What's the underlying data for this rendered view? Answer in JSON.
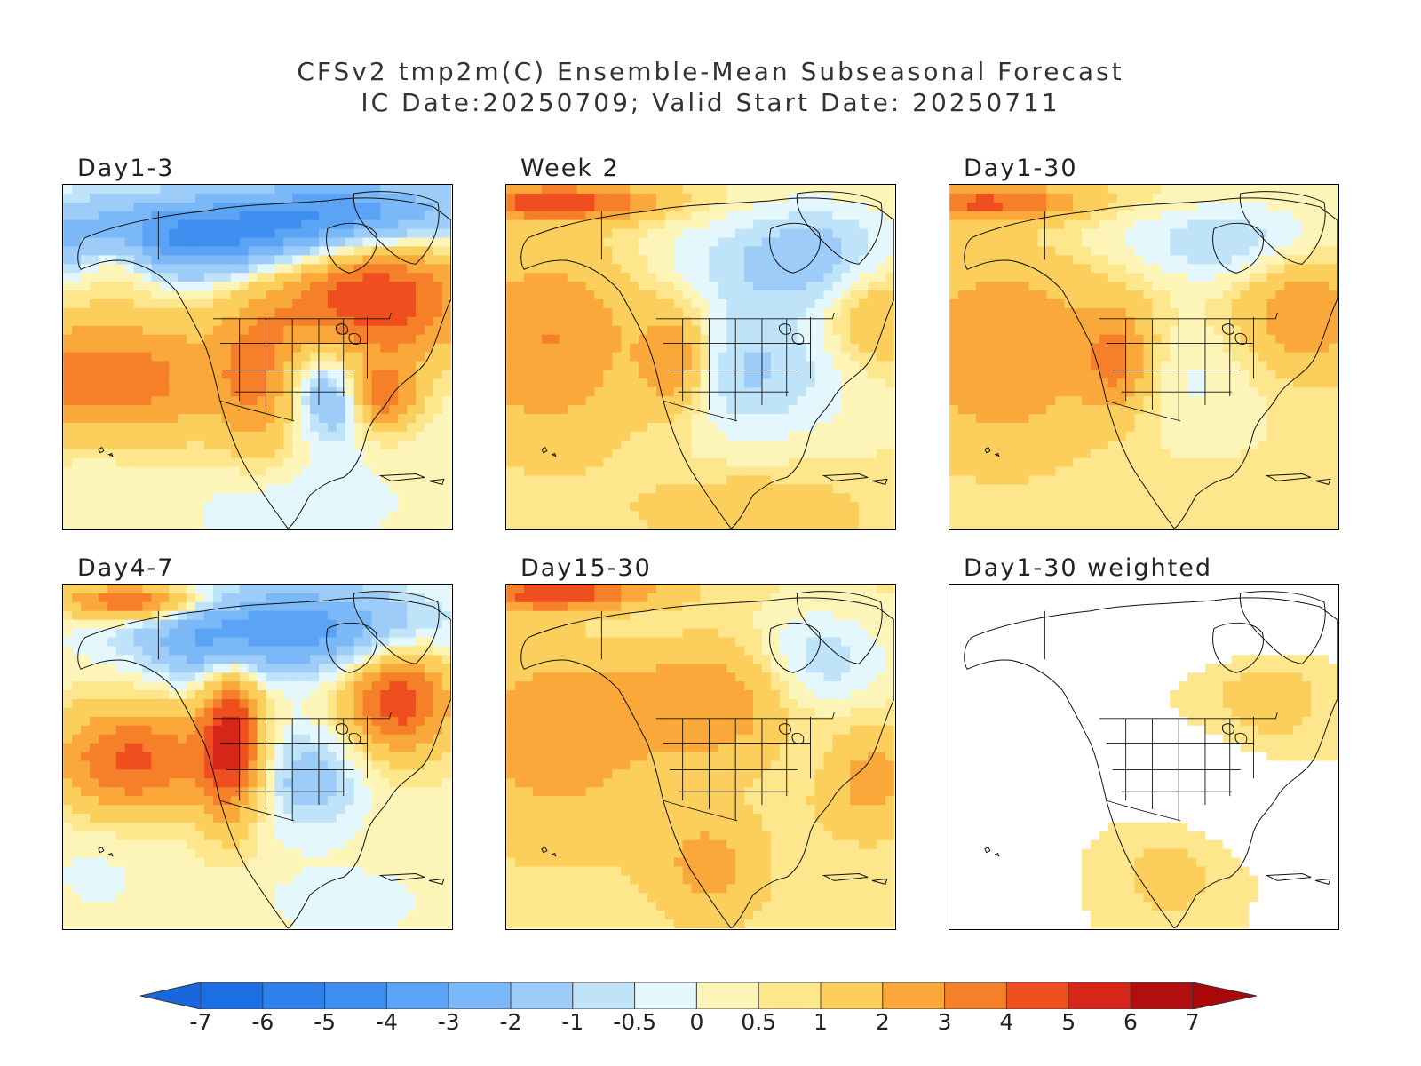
{
  "title_line1": "CFSv2 tmp2m(C) Ensemble-Mean Subseasonal Forecast",
  "title_line2": "IC Date:20250709; Valid Start Date: 20250711",
  "panels": [
    {
      "label": "Day1-3",
      "col": 0,
      "row": 0,
      "style": "d13"
    },
    {
      "label": "Week 2",
      "col": 1,
      "row": 0,
      "style": "w2"
    },
    {
      "label": "Day1-30",
      "col": 2,
      "row": 0,
      "style": "d130"
    },
    {
      "label": "Day4-7",
      "col": 0,
      "row": 1,
      "style": "d47"
    },
    {
      "label": "Day15-30",
      "col": 1,
      "row": 1,
      "style": "d1530"
    },
    {
      "label": "Day1-30 weighted",
      "col": 2,
      "row": 1,
      "style": "wtd"
    }
  ],
  "colorbar": {
    "ticks": [
      "-7",
      "-6",
      "-5",
      "-4",
      "-3",
      "-2",
      "-1",
      "-0.5",
      "0",
      "0.5",
      "1",
      "2",
      "3",
      "4",
      "5",
      "6",
      "7"
    ],
    "colors": [
      "#1d6ee3",
      "#2f80ea",
      "#3f8ff0",
      "#5aa3f5",
      "#7ab8f8",
      "#9dccf9",
      "#bfe3f8",
      "#e3f7fd",
      "#fdf5b8",
      "#fde68c",
      "#fcce5c",
      "#faa83a",
      "#f6802a",
      "#ef4e1e",
      "#d6261a",
      "#b30e0e"
    ],
    "low_color": "#1a66dd",
    "high_color": "#a80808"
  }
}
